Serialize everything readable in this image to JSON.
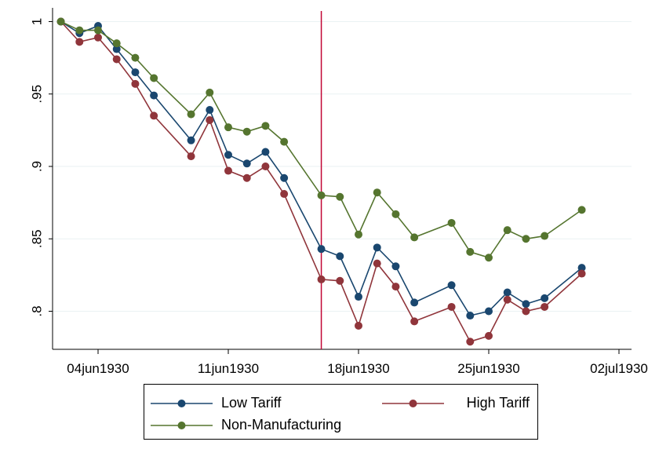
{
  "chart_data": {
    "type": "line",
    "title": "",
    "xlabel": "",
    "ylabel": "",
    "x": [
      "02jun1930",
      "03jun1930",
      "04jun1930",
      "05jun1930",
      "06jun1930",
      "07jun1930",
      "09jun1930",
      "10jun1930",
      "11jun1930",
      "12jun1930",
      "13jun1930",
      "14jun1930",
      "16jun1930",
      "17jun1930",
      "18jun1930",
      "19jun1930",
      "20jun1930",
      "21jun1930",
      "23jun1930",
      "24jun1930",
      "25jun1930",
      "26jun1930",
      "27jun1930",
      "28jun1930",
      "30jun1930"
    ],
    "x_ticks": [
      "04jun1930",
      "11jun1930",
      "18jun1930",
      "25jun1930",
      "02jul1930"
    ],
    "y_ticks": [
      "1",
      ".95",
      ".9",
      ".85",
      ".8"
    ],
    "ylim": [
      0.774,
      1.005
    ],
    "grid": "horizontal",
    "vertical_line": "16jun1930",
    "series": [
      {
        "name": "Low Tariff",
        "color": "#1a476f",
        "values": [
          1.0,
          0.992,
          0.997,
          0.981,
          0.965,
          0.949,
          0.918,
          0.939,
          0.908,
          0.902,
          0.91,
          0.892,
          0.843,
          0.838,
          0.81,
          0.844,
          0.831,
          0.806,
          0.818,
          0.797,
          0.8,
          0.813,
          0.805,
          0.809,
          0.83
        ]
      },
      {
        "name": "High Tariff",
        "color": "#90353b",
        "values": [
          1.0,
          0.986,
          0.989,
          0.974,
          0.957,
          0.935,
          0.907,
          0.932,
          0.897,
          0.892,
          0.9,
          0.881,
          0.822,
          0.821,
          0.79,
          0.833,
          0.817,
          0.793,
          0.803,
          0.779,
          0.783,
          0.808,
          0.8,
          0.803,
          0.826
        ]
      },
      {
        "name": "Non-Manufacturing",
        "color": "#55752f",
        "values": [
          1.0,
          0.994,
          0.994,
          0.985,
          0.975,
          0.961,
          0.936,
          0.951,
          0.927,
          0.924,
          0.928,
          0.917,
          0.88,
          0.879,
          0.853,
          0.882,
          0.867,
          0.851,
          0.861,
          0.841,
          0.837,
          0.856,
          0.85,
          0.852,
          0.87
        ]
      }
    ],
    "legend": {
      "position": "bottom",
      "columns": 2
    }
  }
}
